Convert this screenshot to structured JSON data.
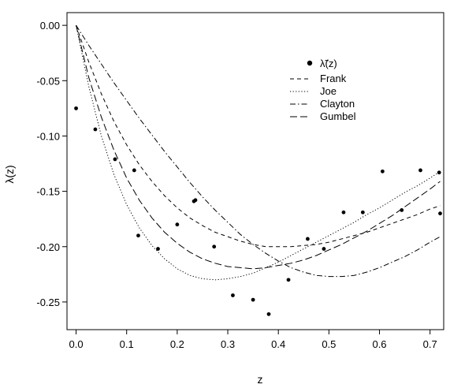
{
  "chart_data": {
    "type": "scatter",
    "title": "",
    "xlabel": "z",
    "ylabel": "λ(z)",
    "xlim": [
      -0.018,
      0.727
    ],
    "ylim": [
      -0.275,
      0.0115
    ],
    "xticks": [
      0.0,
      0.1,
      0.2,
      0.3,
      0.4,
      0.5,
      0.6,
      0.7
    ],
    "xtick_labels": [
      "0.0",
      "0.1",
      "0.2",
      "0.3",
      "0.4",
      "0.5",
      "0.6",
      "0.7"
    ],
    "yticks": [
      0.0,
      -0.05,
      -0.1,
      -0.15,
      -0.2,
      -0.25
    ],
    "ytick_labels": [
      "0.00",
      "-0.05",
      "-0.10",
      "-0.15",
      "-0.20",
      "-0.25"
    ],
    "grid": false,
    "legend_position": "top-right",
    "points": {
      "name": "λ̃(z)",
      "x": [
        0.0,
        0.038,
        0.077,
        0.115,
        0.123,
        0.162,
        0.2,
        0.233,
        0.236,
        0.273,
        0.31,
        0.35,
        0.381,
        0.42,
        0.458,
        0.49,
        0.529,
        0.567,
        0.606,
        0.644,
        0.681,
        0.718,
        0.72
      ],
      "y": [
        -0.075,
        -0.094,
        -0.121,
        -0.131,
        -0.19,
        -0.202,
        -0.18,
        -0.159,
        -0.158,
        -0.2,
        -0.244,
        -0.248,
        -0.261,
        -0.23,
        -0.193,
        -0.202,
        -0.169,
        -0.169,
        -0.132,
        -0.167,
        -0.131,
        -0.133,
        -0.17
      ]
    },
    "series": [
      {
        "name": "Frank",
        "dash": "5,4",
        "x": [
          0.0,
          0.025,
          0.05,
          0.075,
          0.1,
          0.125,
          0.15,
          0.175,
          0.2,
          0.225,
          0.25,
          0.275,
          0.3,
          0.325,
          0.35,
          0.375,
          0.4,
          0.425,
          0.45,
          0.475,
          0.5,
          0.525,
          0.55,
          0.575,
          0.6,
          0.625,
          0.65,
          0.675,
          0.7,
          0.72
        ],
        "y": [
          0.0,
          -0.033,
          -0.062,
          -0.087,
          -0.108,
          -0.126,
          -0.141,
          -0.154,
          -0.165,
          -0.174,
          -0.181,
          -0.187,
          -0.191,
          -0.195,
          -0.198,
          -0.2,
          -0.2,
          -0.2,
          -0.199,
          -0.198,
          -0.196,
          -0.193,
          -0.19,
          -0.187,
          -0.183,
          -0.179,
          -0.175,
          -0.171,
          -0.166,
          -0.163
        ]
      },
      {
        "name": "Joe",
        "dash": "1.2,2.4",
        "x": [
          0.0,
          0.025,
          0.05,
          0.075,
          0.1,
          0.125,
          0.15,
          0.175,
          0.2,
          0.225,
          0.25,
          0.275,
          0.3,
          0.325,
          0.35,
          0.375,
          0.4,
          0.425,
          0.45,
          0.475,
          0.5,
          0.525,
          0.55,
          0.575,
          0.6,
          0.625,
          0.65,
          0.675,
          0.7,
          0.72
        ],
        "y": [
          0.0,
          -0.055,
          -0.1,
          -0.135,
          -0.162,
          -0.183,
          -0.199,
          -0.211,
          -0.22,
          -0.226,
          -0.229,
          -0.23,
          -0.229,
          -0.227,
          -0.224,
          -0.219,
          -0.214,
          -0.208,
          -0.202,
          -0.196,
          -0.19,
          -0.184,
          -0.178,
          -0.171,
          -0.165,
          -0.158,
          -0.151,
          -0.145,
          -0.138,
          -0.132
        ]
      },
      {
        "name": "Clayton",
        "dash": "7,3,1.5,3",
        "x": [
          0.0,
          0.025,
          0.05,
          0.075,
          0.1,
          0.125,
          0.15,
          0.175,
          0.2,
          0.225,
          0.25,
          0.275,
          0.3,
          0.325,
          0.35,
          0.375,
          0.4,
          0.425,
          0.45,
          0.475,
          0.5,
          0.525,
          0.55,
          0.575,
          0.6,
          0.625,
          0.65,
          0.675,
          0.7,
          0.72
        ],
        "y": [
          0.0,
          -0.018,
          -0.035,
          -0.052,
          -0.068,
          -0.084,
          -0.099,
          -0.114,
          -0.128,
          -0.142,
          -0.155,
          -0.167,
          -0.178,
          -0.189,
          -0.198,
          -0.206,
          -0.213,
          -0.219,
          -0.223,
          -0.226,
          -0.227,
          -0.227,
          -0.226,
          -0.223,
          -0.219,
          -0.214,
          -0.209,
          -0.203,
          -0.196,
          -0.191
        ]
      },
      {
        "name": "Gumbel",
        "dash": "9,4",
        "x": [
          0.0,
          0.025,
          0.05,
          0.075,
          0.1,
          0.125,
          0.15,
          0.175,
          0.2,
          0.225,
          0.25,
          0.275,
          0.3,
          0.325,
          0.35,
          0.375,
          0.4,
          0.425,
          0.45,
          0.475,
          0.5,
          0.525,
          0.55,
          0.575,
          0.6,
          0.625,
          0.65,
          0.675,
          0.7,
          0.72
        ],
        "y": [
          0.0,
          -0.047,
          -0.083,
          -0.113,
          -0.138,
          -0.158,
          -0.174,
          -0.187,
          -0.197,
          -0.205,
          -0.211,
          -0.215,
          -0.218,
          -0.219,
          -0.22,
          -0.219,
          -0.217,
          -0.215,
          -0.212,
          -0.208,
          -0.203,
          -0.198,
          -0.192,
          -0.186,
          -0.179,
          -0.172,
          -0.164,
          -0.156,
          -0.148,
          -0.141
        ]
      }
    ]
  }
}
